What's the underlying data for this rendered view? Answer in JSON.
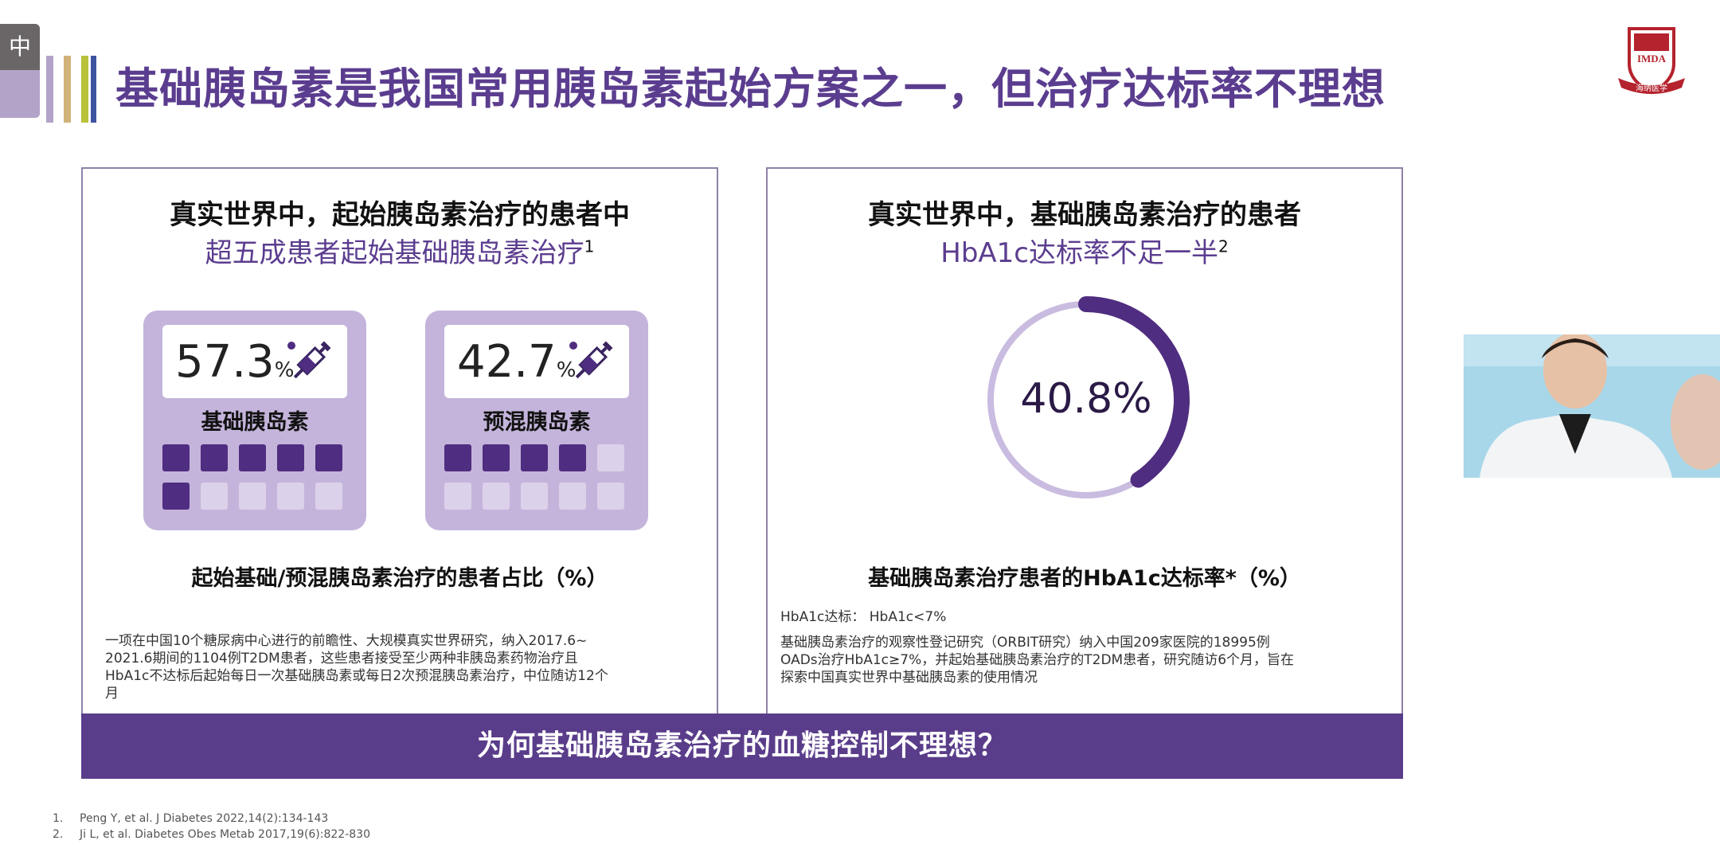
{
  "header": {
    "lang_tab_label": "中",
    "title": "基础胰岛素是我国常用胰岛素起始方案之一，但治疗达标率不理想",
    "bar_colors": [
      "#b3a3c9",
      "#d1b27a",
      "#b9c23a",
      "#3e53a0"
    ]
  },
  "logo": {
    "top_text": "IMDA",
    "ribbon_text": "海纳医学"
  },
  "left_panel": {
    "title": "真实世界中，起始胰岛素治疗的患者中",
    "subtitle": "超五成患者起始基础胰岛素治疗",
    "subtitle_ref": "1",
    "cards": [
      {
        "value": "57.3",
        "unit": "%",
        "label": "基础胰岛素",
        "filled": 6,
        "total": 10
      },
      {
        "value": "42.7",
        "unit": "%",
        "label": "预混胰岛素",
        "filled": 4,
        "total": 10
      }
    ],
    "caption": "起始基础/预混胰岛素治疗的患者占比（%）",
    "note_lines": [
      "一项在中国10个糖尿病中心进行的前瞻性、大规模真实世界研究，纳入2017.6~",
      "2021.6期间的1104例T2DM患者，这些患者接受至少两种非胰岛素药物治疗且",
      "HbA1c不达标后起始每日一次基础胰岛素或每日2次预混胰岛素治疗，中位随访12个",
      "月"
    ]
  },
  "right_panel": {
    "title": "真实世界中，基础胰岛素治疗的患者",
    "subtitle": "HbA1c达标率不足一半",
    "subtitle_ref": "2",
    "ring_value": "40.8%",
    "ring_fraction": 0.408,
    "caption": "基础胰岛素治疗患者的HbA1c达标率*（%）",
    "note_lines": [
      "HbA1c达标： HbA1c<7%",
      "基础胰岛素治疗的观察性登记研究（ORBIT研究）纳入中国209家医院的18995例",
      "OADs治疗HbA1c≥7%，并起始基础胰岛素治疗的T2DM患者，研究随访6个月，旨在",
      "探索中国真实世界中基础胰岛素的使用情况"
    ]
  },
  "banner": {
    "text": "为何基础胰岛素治疗的血糖控制不理想？"
  },
  "references": [
    {
      "num": "1.",
      "text": "Peng Y, et al. J Diabetes 2022,14(2):134-143"
    },
    {
      "num": "2.",
      "text": "Ji L, et al. Diabetes Obes Metab 2017,19(6):822-830"
    }
  ],
  "colors": {
    "primary_purple": "#5b3d8f",
    "card_purple": "#c4b4db",
    "filled_cell": "#4f2d80",
    "empty_cell": "#dcd1ea",
    "ring_track": "#c9bce0"
  }
}
